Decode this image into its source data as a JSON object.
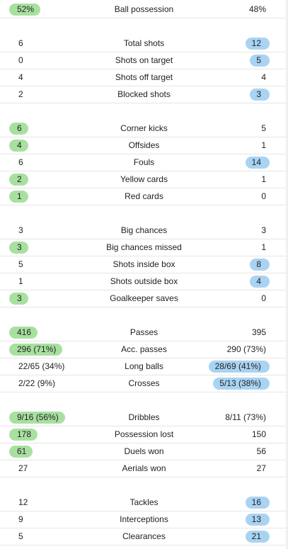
{
  "colors": {
    "home_highlight": "#a8e0a0",
    "away_highlight": "#a9d3f3",
    "divider": "#e6e6e6"
  },
  "groups": [
    {
      "rows": [
        {
          "label": "Ball possession",
          "home": "52%",
          "away": "48%",
          "leader": "home"
        }
      ]
    },
    {
      "rows": [
        {
          "label": "Total shots",
          "home": "6",
          "away": "12",
          "leader": "away"
        },
        {
          "label": "Shots on target",
          "home": "0",
          "away": "5",
          "leader": "away"
        },
        {
          "label": "Shots off target",
          "home": "4",
          "away": "4",
          "leader": "none"
        },
        {
          "label": "Blocked shots",
          "home": "2",
          "away": "3",
          "leader": "away"
        }
      ]
    },
    {
      "rows": [
        {
          "label": "Corner kicks",
          "home": "6",
          "away": "5",
          "leader": "home"
        },
        {
          "label": "Offsides",
          "home": "4",
          "away": "1",
          "leader": "home"
        },
        {
          "label": "Fouls",
          "home": "6",
          "away": "14",
          "leader": "away"
        },
        {
          "label": "Yellow cards",
          "home": "2",
          "away": "1",
          "leader": "home"
        },
        {
          "label": "Red cards",
          "home": "1",
          "away": "0",
          "leader": "home"
        }
      ]
    },
    {
      "rows": [
        {
          "label": "Big chances",
          "home": "3",
          "away": "3",
          "leader": "none"
        },
        {
          "label": "Big chances missed",
          "home": "3",
          "away": "1",
          "leader": "home"
        },
        {
          "label": "Shots inside box",
          "home": "5",
          "away": "8",
          "leader": "away"
        },
        {
          "label": "Shots outside box",
          "home": "1",
          "away": "4",
          "leader": "away"
        },
        {
          "label": "Goalkeeper saves",
          "home": "3",
          "away": "0",
          "leader": "home"
        }
      ]
    },
    {
      "rows": [
        {
          "label": "Passes",
          "home": "416",
          "away": "395",
          "leader": "home"
        },
        {
          "label": "Acc. passes",
          "home": "296 (71%)",
          "away": "290 (73%)",
          "leader": "home"
        },
        {
          "label": "Long balls",
          "home": "22/65 (34%)",
          "away": "28/69 (41%)",
          "leader": "away"
        },
        {
          "label": "Crosses",
          "home": "2/22 (9%)",
          "away": "5/13 (38%)",
          "leader": "away"
        }
      ]
    },
    {
      "rows": [
        {
          "label": "Dribbles",
          "home": "9/16 (56%)",
          "away": "8/11 (73%)",
          "leader": "home"
        },
        {
          "label": "Possession lost",
          "home": "178",
          "away": "150",
          "leader": "home"
        },
        {
          "label": "Duels won",
          "home": "61",
          "away": "56",
          "leader": "home"
        },
        {
          "label": "Aerials won",
          "home": "27",
          "away": "27",
          "leader": "none"
        }
      ]
    },
    {
      "rows": [
        {
          "label": "Tackles",
          "home": "12",
          "away": "16",
          "leader": "away"
        },
        {
          "label": "Interceptions",
          "home": "9",
          "away": "13",
          "leader": "away"
        },
        {
          "label": "Clearances",
          "home": "5",
          "away": "21",
          "leader": "away"
        }
      ]
    }
  ]
}
